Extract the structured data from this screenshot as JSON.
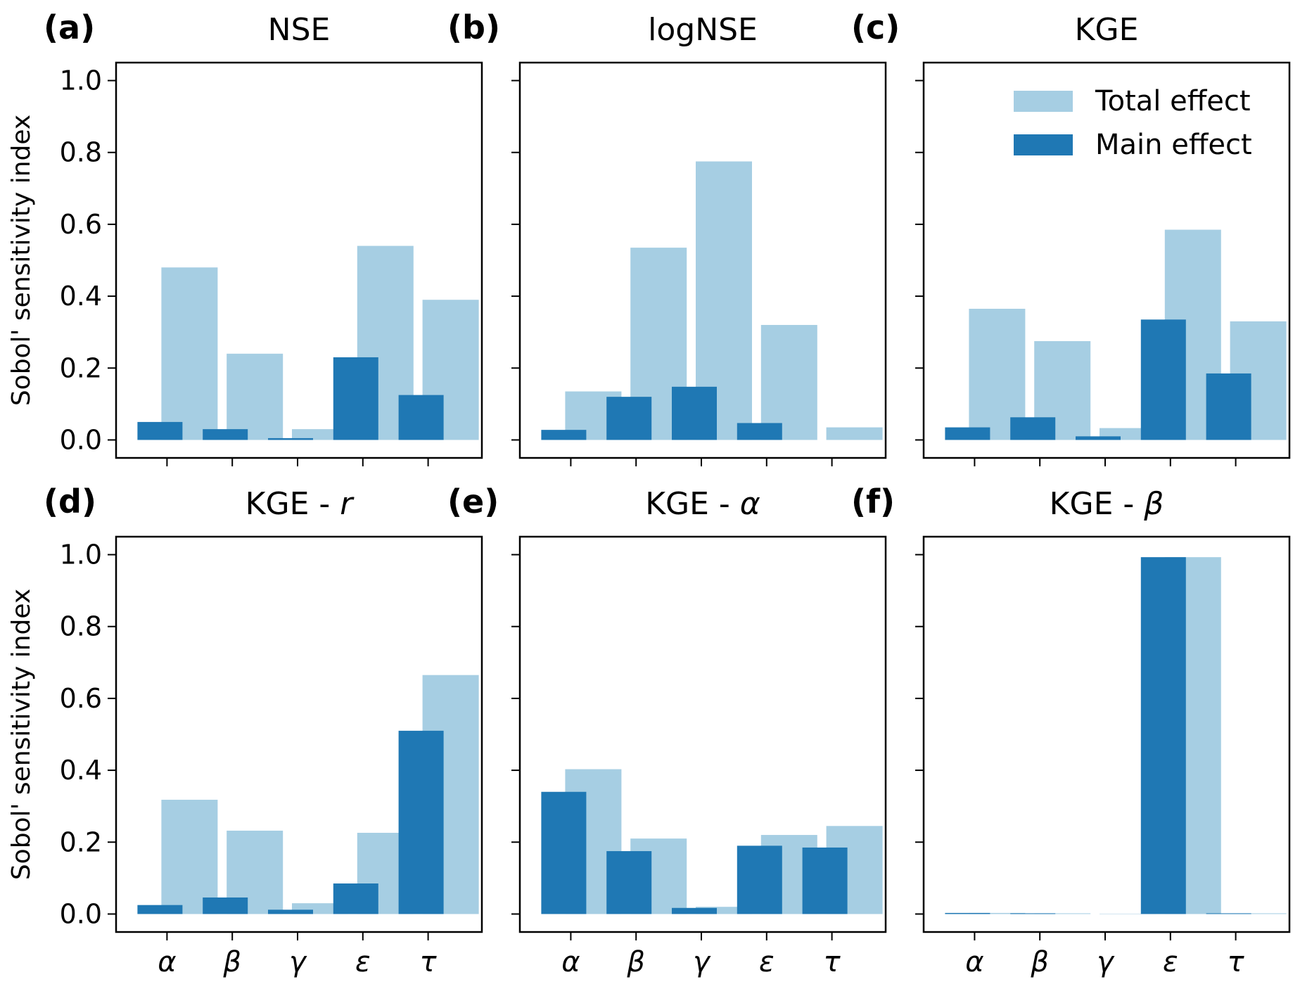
{
  "chart_data": [
    {
      "type": "bar",
      "panel_label": "(a)",
      "title": "NSE",
      "title_symbol": "",
      "ylabel": "Sobol' sensitivity index",
      "ylim": [
        -0.05,
        1.05
      ],
      "yticks": [
        "0.0",
        "0.2",
        "0.4",
        "0.6",
        "0.8",
        "1.0"
      ],
      "categories": [
        "α",
        "β",
        "γ",
        "ε",
        "τ"
      ],
      "series": [
        {
          "name": "Total effect",
          "values": [
            0.48,
            0.24,
            0.03,
            0.54,
            0.39
          ]
        },
        {
          "name": "Main effect",
          "values": [
            0.05,
            0.03,
            0.005,
            0.23,
            0.125
          ]
        }
      ]
    },
    {
      "type": "bar",
      "panel_label": "(b)",
      "title": "logNSE",
      "title_symbol": "",
      "ylabel": "",
      "ylim": [
        -0.05,
        1.05
      ],
      "categories": [
        "α",
        "β",
        "γ",
        "ε",
        "τ"
      ],
      "series": [
        {
          "name": "Total effect",
          "values": [
            0.135,
            0.535,
            0.775,
            0.32,
            0.035
          ]
        },
        {
          "name": "Main effect",
          "values": [
            0.028,
            0.12,
            0.148,
            0.047,
            0.0
          ]
        }
      ]
    },
    {
      "type": "bar",
      "panel_label": "(c)",
      "title": "KGE",
      "title_symbol": "",
      "ylabel": "",
      "ylim": [
        -0.05,
        1.05
      ],
      "categories": [
        "α",
        "β",
        "γ",
        "ε",
        "τ"
      ],
      "legend": {
        "placement": "top-right",
        "entries": [
          "Total effect",
          "Main effect"
        ]
      },
      "series": [
        {
          "name": "Total effect",
          "values": [
            0.365,
            0.275,
            0.033,
            0.585,
            0.33
          ]
        },
        {
          "name": "Main effect",
          "values": [
            0.035,
            0.063,
            0.01,
            0.335,
            0.185
          ]
        }
      ]
    },
    {
      "type": "bar",
      "panel_label": "(d)",
      "title": "KGE - ",
      "title_symbol": "r",
      "ylabel": "Sobol' sensitivity index",
      "ylim": [
        -0.05,
        1.05
      ],
      "yticks": [
        "0.0",
        "0.2",
        "0.4",
        "0.6",
        "0.8",
        "1.0"
      ],
      "xlabels_visible": true,
      "categories": [
        "α",
        "β",
        "γ",
        "ε",
        "τ"
      ],
      "series": [
        {
          "name": "Total effect",
          "values": [
            0.318,
            0.232,
            0.03,
            0.226,
            0.665
          ]
        },
        {
          "name": "Main effect",
          "values": [
            0.025,
            0.046,
            0.012,
            0.085,
            0.51
          ]
        }
      ]
    },
    {
      "type": "bar",
      "panel_label": "(e)",
      "title": "KGE - ",
      "title_symbol": "α",
      "ylabel": "",
      "ylim": [
        -0.05,
        1.05
      ],
      "xlabels_visible": true,
      "categories": [
        "α",
        "β",
        "γ",
        "ε",
        "τ"
      ],
      "series": [
        {
          "name": "Total effect",
          "values": [
            0.403,
            0.21,
            0.02,
            0.22,
            0.245
          ]
        },
        {
          "name": "Main effect",
          "values": [
            0.34,
            0.175,
            0.017,
            0.19,
            0.185
          ]
        }
      ]
    },
    {
      "type": "bar",
      "panel_label": "(f)",
      "title": "KGE - ",
      "title_symbol": "β",
      "ylabel": "",
      "ylim": [
        -0.05,
        1.05
      ],
      "xlabels_visible": true,
      "categories": [
        "α",
        "β",
        "γ",
        "ε",
        "τ"
      ],
      "series": [
        {
          "name": "Total effect",
          "values": [
            0.003,
            0.002,
            0.001,
            0.993,
            0.002
          ]
        },
        {
          "name": "Main effect",
          "values": [
            0.003,
            0.002,
            0.0,
            0.993,
            0.002
          ]
        }
      ]
    }
  ],
  "colors": {
    "total_effect": "#a6cee3",
    "main_effect": "#1f78b4"
  }
}
